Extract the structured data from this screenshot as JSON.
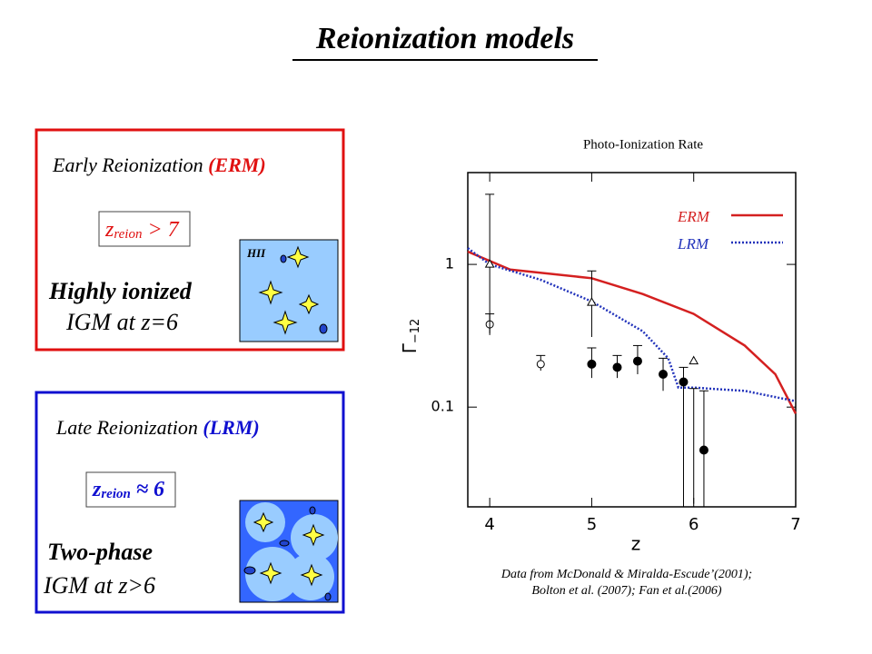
{
  "title": "Reionization models",
  "panels": [
    {
      "title": "Early Reionization ",
      "model": "(ERM)",
      "formula": {
        "base": "z",
        "sub": "reion",
        "rel": " > 7"
      },
      "region_label": "HII",
      "lines": [
        "Highly ionized",
        "IGM at z=6"
      ]
    },
    {
      "title": "Late Reionization ",
      "model": "(LRM)",
      "formula": {
        "base": "z",
        "sub": "reion",
        "rel": " ≈ 6"
      },
      "lines": [
        "Two-phase",
        "IGM at z>6"
      ]
    }
  ],
  "caption": [
    "Data from McDonald & Miralda-Escude’(2001);",
    "Bolton et al. (2007); Fan et al.(2006)"
  ],
  "chart_data": {
    "type": "line",
    "title": "Photo-Ionization Rate",
    "xlabel": "z",
    "ylabel": "Γ",
    "ylabel_sub": "−12",
    "xlim": [
      3.785,
      7
    ],
    "ylim": [
      0.02,
      4.4
    ],
    "xticks": [
      4,
      5,
      6,
      7
    ],
    "yticks": [
      {
        "value": 1,
        "label": "1"
      },
      {
        "value": 0.1,
        "label": "0.1"
      }
    ],
    "log_y": true,
    "legend": "upper right",
    "series": [
      {
        "name": "ERM",
        "color": "#d42020",
        "style": "solid",
        "x": [
          3.785,
          4.2,
          5,
          5.5,
          6,
          6.5,
          6.8,
          7
        ],
        "values": [
          1.23,
          0.92,
          0.8,
          0.62,
          0.45,
          0.27,
          0.17,
          0.09
        ]
      },
      {
        "name": "LRM",
        "color": "#2233bb",
        "style": "dotted",
        "x": [
          3.785,
          4,
          4.5,
          5,
          5.5,
          5.75,
          5.85,
          6,
          6.5,
          7
        ],
        "values": [
          1.3,
          1.0,
          0.78,
          0.55,
          0.34,
          0.22,
          0.137,
          0.137,
          0.13,
          0.11
        ]
      }
    ],
    "points": [
      {
        "marker": "circle-filled",
        "x": [
          5,
          5.25,
          5.45,
          5.7,
          5.9,
          6.1
        ],
        "values": [
          0.2,
          0.19,
          0.21,
          0.17,
          0.15,
          0.05
        ],
        "err_low": [
          0.16,
          0.16,
          0.17,
          0.13,
          0.02,
          0.02
        ],
        "err_high": [
          0.26,
          0.23,
          0.27,
          0.22,
          0.19,
          0.13
        ]
      },
      {
        "marker": "circle-open",
        "x": [
          4,
          4.5
        ],
        "values": [
          0.38,
          0.2
        ],
        "err_low": [
          0.33,
          0.18
        ],
        "err_high": [
          0.45,
          0.23
        ]
      },
      {
        "marker": "triangle-open",
        "x": [
          4,
          5,
          6
        ],
        "values": [
          1.0,
          0.54,
          0.21
        ],
        "err_low": [
          0.32,
          0.31,
          0.021
        ],
        "err_high": [
          3.1,
          0.9,
          0.135
        ]
      }
    ]
  }
}
